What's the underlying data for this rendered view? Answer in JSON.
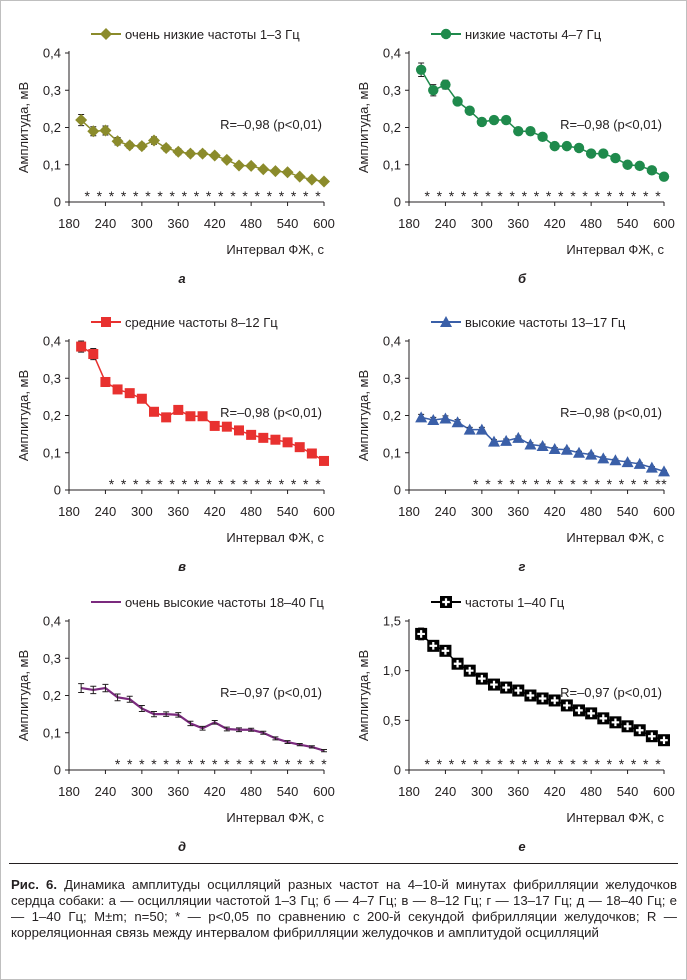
{
  "figure": {
    "caption_lead": "Рис. 6.",
    "caption_text": "Динамика амплитуды осцилляций разных частот на 4–10-й минутах фибрилляции желудочков сердца собаки: а — осцилляции частотой 1–3 Гц; б — 4–7 Гц; в — 8–12 Гц; г — 13–17 Гц; д — 18–40 Гц; е — 1–40 Гц; M±m; n=50; * — p<0,05 по сравнению с 200-й секундой фибрилляции желудочков; R — корреляционная связь между интервалом фибрилляции желудочков и амплитудой осцилляций"
  },
  "chart_data": [
    {
      "panel": "а",
      "type": "line",
      "marker": "diamond",
      "color": "#8b8b2b",
      "legend": "очень низкие частоты 1–3 Гц",
      "ylabel": "Амплитуда, мВ",
      "xlabel": "Интервал ФЖ, с",
      "annotation": "R=–0,98 (p<0,01)",
      "significance": "*",
      "xlim": [
        180,
        600
      ],
      "ylim": [
        0,
        0.4
      ],
      "xticks": [
        180,
        240,
        300,
        360,
        420,
        480,
        540,
        600
      ],
      "yticks": [
        0,
        0.1,
        0.2,
        0.3,
        0.4
      ],
      "ytick_labels": [
        "0",
        "0,1",
        "0,2",
        "0,3",
        "0,4"
      ],
      "x": [
        200,
        220,
        240,
        260,
        280,
        300,
        320,
        340,
        360,
        380,
        400,
        420,
        440,
        460,
        480,
        500,
        520,
        540,
        560,
        580,
        600
      ],
      "values": [
        0.22,
        0.19,
        0.192,
        0.163,
        0.152,
        0.15,
        0.165,
        0.145,
        0.135,
        0.13,
        0.13,
        0.125,
        0.113,
        0.098,
        0.097,
        0.088,
        0.083,
        0.08,
        0.068,
        0.06,
        0.055
      ],
      "errors": [
        0.015,
        0.012,
        0.012,
        0.01,
        0.008,
        0.008,
        0.01,
        0.008,
        0.008,
        0.008,
        0.008,
        0.007,
        0.007,
        0.006,
        0.006,
        0.006,
        0.005,
        0.005,
        0.005,
        0.004,
        0.004
      ],
      "stars_x": [
        210,
        230,
        250,
        270,
        290,
        310,
        330,
        350,
        370,
        390,
        410,
        430,
        450,
        470,
        490,
        510,
        530,
        550,
        570,
        590
      ]
    },
    {
      "panel": "б",
      "type": "line",
      "marker": "circle",
      "color": "#1f8a4c",
      "legend": "низкие частоты 4–7 Гц",
      "ylabel": "Амплитуда, мВ",
      "xlabel": "Интервал ФЖ, с",
      "annotation": "R=–0,98 (p<0,01)",
      "significance": "*",
      "xlim": [
        180,
        600
      ],
      "ylim": [
        0,
        0.4
      ],
      "xticks": [
        180,
        240,
        300,
        360,
        420,
        480,
        540,
        600
      ],
      "yticks": [
        0,
        0.1,
        0.2,
        0.3,
        0.4
      ],
      "ytick_labels": [
        "0",
        "0,1",
        "0,2",
        "0,3",
        "0,4"
      ],
      "x": [
        200,
        220,
        240,
        260,
        280,
        300,
        320,
        340,
        360,
        380,
        400,
        420,
        440,
        460,
        480,
        500,
        520,
        540,
        560,
        580,
        600
      ],
      "values": [
        0.355,
        0.3,
        0.315,
        0.27,
        0.245,
        0.215,
        0.22,
        0.22,
        0.19,
        0.19,
        0.175,
        0.15,
        0.15,
        0.145,
        0.13,
        0.13,
        0.118,
        0.1,
        0.097,
        0.085,
        0.068
      ],
      "errors": [
        0.018,
        0.015,
        0.012,
        0.01,
        0.01,
        0.008,
        0.008,
        0.008,
        0.007,
        0.007,
        0.007,
        0.006,
        0.006,
        0.006,
        0.005,
        0.005,
        0.005,
        0.005,
        0.004,
        0.004,
        0.004
      ],
      "stars_x": [
        210,
        230,
        250,
        270,
        290,
        310,
        330,
        350,
        370,
        390,
        410,
        430,
        450,
        470,
        490,
        510,
        530,
        550,
        570,
        590
      ]
    },
    {
      "panel": "в",
      "type": "line",
      "marker": "square",
      "color": "#e8312f",
      "legend": "средние частоты 8–12 Гц",
      "ylabel": "Амплитуда, мВ",
      "xlabel": "Интервал ФЖ, с",
      "annotation": "R=–0,98 (p<0,01)",
      "significance": "*",
      "xlim": [
        180,
        600
      ],
      "ylim": [
        0,
        0.4
      ],
      "xticks": [
        180,
        240,
        300,
        360,
        420,
        480,
        540,
        600
      ],
      "yticks": [
        0,
        0.1,
        0.2,
        0.3,
        0.4
      ],
      "ytick_labels": [
        "0",
        "0,1",
        "0,2",
        "0,3",
        "0,4"
      ],
      "x": [
        200,
        220,
        240,
        260,
        280,
        300,
        320,
        340,
        360,
        380,
        400,
        420,
        440,
        460,
        480,
        500,
        520,
        540,
        560,
        580,
        600
      ],
      "values": [
        0.385,
        0.365,
        0.29,
        0.27,
        0.26,
        0.245,
        0.21,
        0.195,
        0.215,
        0.198,
        0.198,
        0.172,
        0.17,
        0.16,
        0.148,
        0.14,
        0.135,
        0.128,
        0.115,
        0.098,
        0.078
      ],
      "errors": [
        0.015,
        0.015,
        0.012,
        0.01,
        0.01,
        0.009,
        0.008,
        0.008,
        0.008,
        0.007,
        0.007,
        0.007,
        0.006,
        0.006,
        0.006,
        0.005,
        0.005,
        0.005,
        0.005,
        0.004,
        0.004
      ],
      "stars_x": [
        250,
        270,
        290,
        310,
        330,
        350,
        370,
        390,
        410,
        430,
        450,
        470,
        490,
        510,
        530,
        550,
        570,
        590
      ]
    },
    {
      "panel": "г",
      "type": "line",
      "marker": "triangle",
      "color": "#3a5fa8",
      "legend": "высокие частоты 13–17 Гц",
      "ylabel": "Амплитуда, мВ",
      "xlabel": "Интервал ФЖ, с",
      "annotation": "R=–0,98 (p<0,01)",
      "significance": "*",
      "xlim": [
        180,
        600
      ],
      "ylim": [
        0,
        0.4
      ],
      "xticks": [
        180,
        240,
        300,
        360,
        420,
        480,
        540,
        600
      ],
      "yticks": [
        0,
        0.1,
        0.2,
        0.3,
        0.4
      ],
      "ytick_labels": [
        "0",
        "0,1",
        "0,2",
        "0,3",
        "0,4"
      ],
      "x": [
        200,
        220,
        240,
        260,
        280,
        300,
        320,
        340,
        360,
        380,
        400,
        420,
        440,
        460,
        480,
        500,
        520,
        540,
        560,
        580,
        600
      ],
      "values": [
        0.195,
        0.188,
        0.192,
        0.182,
        0.162,
        0.162,
        0.13,
        0.132,
        0.14,
        0.122,
        0.118,
        0.11,
        0.108,
        0.1,
        0.095,
        0.085,
        0.08,
        0.075,
        0.07,
        0.06,
        0.05
      ],
      "errors": [
        0.008,
        0.007,
        0.007,
        0.007,
        0.006,
        0.006,
        0.005,
        0.005,
        0.005,
        0.005,
        0.005,
        0.004,
        0.004,
        0.004,
        0.004,
        0.004,
        0.003,
        0.003,
        0.003,
        0.003,
        0.003
      ],
      "stars_x": [
        290,
        310,
        330,
        350,
        370,
        390,
        410,
        430,
        450,
        470,
        490,
        510,
        530,
        550,
        570,
        590,
        600
      ]
    },
    {
      "panel": "д",
      "type": "line",
      "marker": "none",
      "color": "#7b2a7e",
      "legend": "очень высокие частоты 18–40 Гц",
      "ylabel": "Амплитуда, мВ",
      "xlabel": "Интервал ФЖ, с",
      "annotation": "R=–0,97 (p<0,01)",
      "significance": "*",
      "xlim": [
        180,
        600
      ],
      "ylim": [
        0,
        0.4
      ],
      "xticks": [
        180,
        240,
        300,
        360,
        420,
        480,
        540,
        600
      ],
      "yticks": [
        0,
        0.1,
        0.2,
        0.3,
        0.4
      ],
      "ytick_labels": [
        "0",
        "0,1",
        "0,2",
        "0,3",
        "0,4"
      ],
      "x": [
        200,
        220,
        240,
        260,
        280,
        300,
        320,
        340,
        360,
        380,
        400,
        420,
        440,
        460,
        480,
        500,
        520,
        540,
        560,
        580,
        600
      ],
      "values": [
        0.22,
        0.215,
        0.22,
        0.195,
        0.19,
        0.165,
        0.15,
        0.15,
        0.148,
        0.125,
        0.112,
        0.128,
        0.11,
        0.108,
        0.108,
        0.1,
        0.085,
        0.075,
        0.068,
        0.062,
        0.052
      ],
      "errors": [
        0.012,
        0.01,
        0.01,
        0.009,
        0.008,
        0.008,
        0.007,
        0.006,
        0.006,
        0.006,
        0.005,
        0.005,
        0.005,
        0.005,
        0.004,
        0.004,
        0.004,
        0.004,
        0.003,
        0.003,
        0.003
      ],
      "stars_x": [
        260,
        280,
        300,
        320,
        340,
        360,
        380,
        400,
        420,
        440,
        460,
        480,
        500,
        520,
        540,
        560,
        580,
        600
      ]
    },
    {
      "panel": "е",
      "type": "line",
      "marker": "cross-square",
      "color": "#000000",
      "legend": "частоты 1–40 Гц",
      "ylabel": "Амплитуда, мВ",
      "xlabel": "Интервал ФЖ, с",
      "annotation": "R=–0,97 (p<0,01)",
      "significance": "*",
      "xlim": [
        180,
        600
      ],
      "ylim": [
        0,
        1.5
      ],
      "xticks": [
        180,
        240,
        300,
        360,
        420,
        480,
        540,
        600
      ],
      "yticks": [
        0,
        0.5,
        1.0,
        1.5
      ],
      "ytick_labels": [
        "0",
        "0,5",
        "1,0",
        "1,5"
      ],
      "x": [
        200,
        220,
        240,
        260,
        280,
        300,
        320,
        340,
        360,
        380,
        400,
        420,
        440,
        460,
        480,
        500,
        520,
        540,
        560,
        580,
        600
      ],
      "values": [
        1.37,
        1.25,
        1.2,
        1.07,
        1.0,
        0.92,
        0.86,
        0.83,
        0.8,
        0.75,
        0.72,
        0.7,
        0.65,
        0.6,
        0.57,
        0.52,
        0.48,
        0.44,
        0.4,
        0.34,
        0.3
      ],
      "errors": [
        0.06,
        0.05,
        0.04,
        0.04,
        0.03,
        0.03,
        0.03,
        0.03,
        0.02,
        0.02,
        0.02,
        0.02,
        0.02,
        0.02,
        0.02,
        0.02,
        0.02,
        0.02,
        0.02,
        0.02,
        0.02
      ],
      "stars_x": [
        210,
        230,
        250,
        270,
        290,
        310,
        330,
        350,
        370,
        390,
        410,
        430,
        450,
        470,
        490,
        510,
        530,
        550,
        570,
        590
      ]
    }
  ]
}
